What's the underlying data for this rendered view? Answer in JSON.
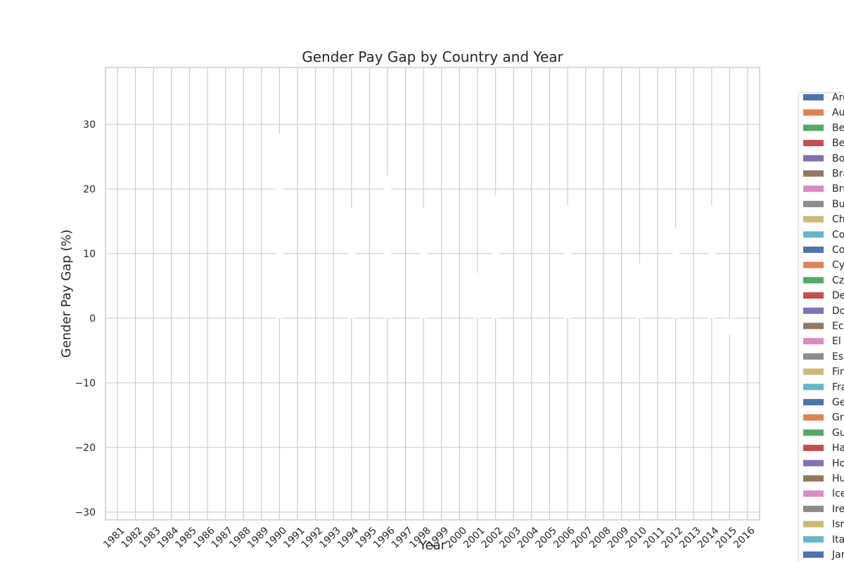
{
  "chart_data": {
    "type": "bar",
    "title": "Gender Pay Gap by Country and Year",
    "xlabel": "Year",
    "ylabel": "Gender Pay Gap (%)",
    "ylim": [
      -31.2,
      38.8
    ],
    "yticks": [
      -30,
      -20,
      -10,
      0,
      10,
      20,
      30
    ],
    "grid": true,
    "legend_position": "right",
    "categories": [
      "1981",
      "1982",
      "1983",
      "1984",
      "1985",
      "1986",
      "1987",
      "1988",
      "1989",
      "1990",
      "1991",
      "1992",
      "1993",
      "1994",
      "1995",
      "1996",
      "1997",
      "1998",
      "1999",
      "2000",
      "2001",
      "2002",
      "2003",
      "2004",
      "2005",
      "2006",
      "2007",
      "2008",
      "2009",
      "2010",
      "2011",
      "2012",
      "2013",
      "2014",
      "2015",
      "2016"
    ],
    "bar_fill": "#ffffff",
    "bars": [
      {
        "year": "1990",
        "value": 28.5
      },
      {
        "year": "1994",
        "value": 17
      },
      {
        "year": "1996",
        "value": 22
      },
      {
        "year": "1998",
        "value": 17
      },
      {
        "year": "2001",
        "value": 7
      },
      {
        "year": "2002",
        "value": 19
      },
      {
        "year": "2006",
        "value": 17.5
      },
      {
        "year": "2010",
        "value": 8.5
      },
      {
        "year": "2012",
        "value": 14
      },
      {
        "year": "2014",
        "value": 17.5
      },
      {
        "year": "2015",
        "value": -2.5
      }
    ],
    "legend": [
      {
        "label": "Arg",
        "color": "#4c72b0"
      },
      {
        "label": "Au",
        "color": "#dd8452"
      },
      {
        "label": "Be",
        "color": "#55a868"
      },
      {
        "label": "Be",
        "color": "#c44e52"
      },
      {
        "label": "Bo",
        "color": "#8172b3"
      },
      {
        "label": "Bra",
        "color": "#937860"
      },
      {
        "label": "Bru",
        "color": "#da8bc3"
      },
      {
        "label": "Bu",
        "color": "#8c8c8c"
      },
      {
        "label": "Ch",
        "color": "#ccb974"
      },
      {
        "label": "Co",
        "color": "#64b5cd"
      },
      {
        "label": "Co",
        "color": "#4c72b0"
      },
      {
        "label": "Cy",
        "color": "#dd8452"
      },
      {
        "label": "Cz",
        "color": "#55a868"
      },
      {
        "label": "De",
        "color": "#c44e52"
      },
      {
        "label": "Do",
        "color": "#8172b3"
      },
      {
        "label": "Ec",
        "color": "#937860"
      },
      {
        "label": "El",
        "color": "#da8bc3"
      },
      {
        "label": "Es",
        "color": "#8c8c8c"
      },
      {
        "label": "Fin",
        "color": "#ccb974"
      },
      {
        "label": "Fra",
        "color": "#64b5cd"
      },
      {
        "label": "Ge",
        "color": "#4c72b0"
      },
      {
        "label": "Gr",
        "color": "#dd8452"
      },
      {
        "label": "Gu",
        "color": "#55a868"
      },
      {
        "label": "Ha",
        "color": "#c44e52"
      },
      {
        "label": "Ho",
        "color": "#8172b3"
      },
      {
        "label": "Hu",
        "color": "#937860"
      },
      {
        "label": "Ice",
        "color": "#da8bc3"
      },
      {
        "label": "Ire",
        "color": "#8c8c8c"
      },
      {
        "label": "Isr",
        "color": "#ccb974"
      },
      {
        "label": "Ital",
        "color": "#64b5cd"
      },
      {
        "label": "Jar",
        "color": "#4c72b0"
      }
    ]
  }
}
